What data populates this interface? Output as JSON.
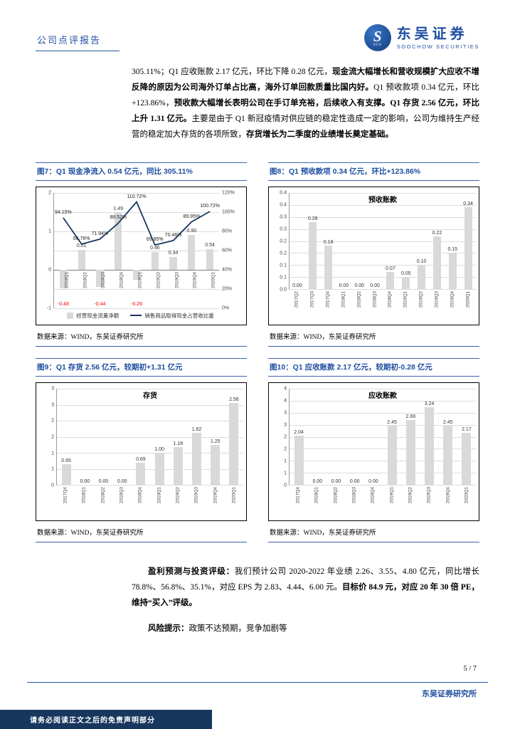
{
  "page": {
    "header": {
      "report_type": "公司点评报告",
      "brand_cn": "东吴证券",
      "brand_en": "SOOCHOW SECURITIES",
      "logo_letter": "S",
      "logo_small": "SCS"
    },
    "intro_segments": [
      {
        "text": "305.11%；Q1 应收账款 2.17 亿元，环比下降 0.28 亿元，",
        "bold": false
      },
      {
        "text": "现金流大幅增长和营收规模扩大应收不增反降的原因为公司海外订单占比高，海外订单回款质量比国内好。",
        "bold": true
      },
      {
        "text": "Q1 预收款项 0.34 亿元，环比+123.86%，",
        "bold": false
      },
      {
        "text": "预收款大幅增长表明公司在手订单充裕，后续收入有支撑。",
        "bold": true
      },
      {
        "text": "Q1 存货 2.56 亿元，环比上升 1.31 亿元。",
        "bold": true
      },
      {
        "text": "主要是由于 Q1 新冠疫情对供应链的稳定性造成一定的影响，公司为维持生产经营的稳定加大存货的各项所致，",
        "bold": false
      },
      {
        "text": "存货增长为二季度的业绩增长奠定基础。",
        "bold": true
      }
    ],
    "summary_segments": [
      {
        "text": "盈利预测与投资评级：",
        "bold": true
      },
      {
        "text": "我们预计公司 2020-2022 年业绩 2.26、3.55、4.80 亿元，同比增长 78.8%、56.8%、35.1%，对应 EPS 为 2.83、4.44、6.00 元。",
        "bold": false
      },
      {
        "text": "目标价 84.9 元，对应 20 年 30 倍 PE，维持“买入”评级。",
        "bold": true
      }
    ],
    "risk_segments": [
      {
        "text": "风险提示：",
        "bold": true
      },
      {
        "text": "政策不达预期，竞争加剧等",
        "bold": false
      }
    ],
    "page_number": "5 / 7",
    "footer": {
      "institute": "东吴证券研究所",
      "disclaimer": "请务必阅读正文之后的免责声明部分"
    },
    "colors": {
      "brand_blue": "#1e4ea1",
      "navy": "#17375e",
      "bar_gray": "#d9d9d9",
      "negative_red": "#ff0000"
    }
  },
  "chart_data": [
    {
      "type": "combo",
      "figure_title": "图7：Q1 现金净流入 0.54 亿元，同比 305.11%",
      "categories": [
        "2018Q1",
        "2018Q2",
        "2018Q3",
        "2018Q4",
        "2019Q1",
        "2019Q2",
        "2019Q3",
        "2019Q4",
        "2020Q1"
      ],
      "bar_series": {
        "name": "经营现金流量净额",
        "values": [
          -0.48,
          0.51,
          -0.44,
          1.49,
          -0.26,
          0.46,
          0.34,
          0.9,
          0.54
        ]
      },
      "line_series": {
        "name": "销售商品取得现金占营收比重",
        "unit": "%",
        "values": [
          94.15,
          66.76,
          71.94,
          88.52,
          110.72,
          65.85,
          70.46,
          89.95,
          100.72
        ]
      },
      "left_axis": {
        "min": -1,
        "max": 2,
        "tick_values": [
          2,
          1,
          0,
          -1
        ]
      },
      "right_axis": {
        "min": 0,
        "max": 120,
        "tick_labels": [
          "120%",
          "100%",
          "80%",
          "60%",
          "40%",
          "20%",
          "0%"
        ]
      },
      "source": "数据来源：WIND，东吴证券研究所"
    },
    {
      "type": "bar",
      "figure_title": "图8：Q1 预收款项 0.34 亿元，环比+123.86%",
      "inner_title": "预收账款",
      "categories": [
        "2017Q2",
        "2017Q3",
        "2017Q4",
        "2018Q1",
        "2018Q2",
        "2018Q3",
        "2018Q4",
        "2019Q1",
        "2019Q2",
        "2019Q3",
        "2019Q4",
        "2020Q1"
      ],
      "values": [
        0.0,
        0.28,
        0.18,
        0.0,
        0.0,
        0.0,
        0.07,
        0.05,
        0.1,
        0.22,
        0.15,
        0.34
      ],
      "ymax": 0.4,
      "ytick_labels": [
        "0.4",
        "0.4",
        "0.3",
        "0.3",
        "0.2",
        "0.2",
        "0.1",
        "0.1",
        "0.0"
      ],
      "source": "数据来源：WIND，东吴证券研究所"
    },
    {
      "type": "bar",
      "figure_title": "图9：Q1 存货 2.56 亿元，较期初+1.31 亿元",
      "inner_title": "存货",
      "categories": [
        "2017Q4",
        "2018Q1",
        "2018Q2",
        "2018Q3",
        "2018Q4",
        "2019Q1",
        "2019Q2",
        "2019Q3",
        "2019Q4",
        "2020Q1"
      ],
      "values": [
        0.65,
        0.0,
        0.0,
        0.0,
        0.69,
        1.0,
        1.18,
        1.62,
        1.25,
        2.56
      ],
      "ymax": 3,
      "ytick_labels": [
        "3",
        "3",
        "2",
        "2",
        "1",
        "1",
        "0"
      ],
      "source": "数据来源：WIND，东吴证券研究所"
    },
    {
      "type": "bar",
      "figure_title": "图10：Q1 应收账款 2.17 亿元，较期初-0.28 亿元",
      "inner_title": "应收账款",
      "categories": [
        "2017Q4",
        "2018Q1",
        "2018Q2",
        "2018Q3",
        "2018Q4",
        "2019Q1",
        "2019Q2",
        "2019Q3",
        "2019Q4",
        "2020Q1"
      ],
      "values": [
        2.04,
        0.0,
        0.0,
        0.0,
        0.0,
        2.45,
        2.69,
        3.24,
        2.45,
        2.17
      ],
      "ymax": 4,
      "ytick_labels": [
        "4",
        "4",
        "3",
        "3",
        "2",
        "2",
        "1",
        "1",
        "0"
      ],
      "source": "数据来源：WIND，东吴证券研究所"
    }
  ]
}
